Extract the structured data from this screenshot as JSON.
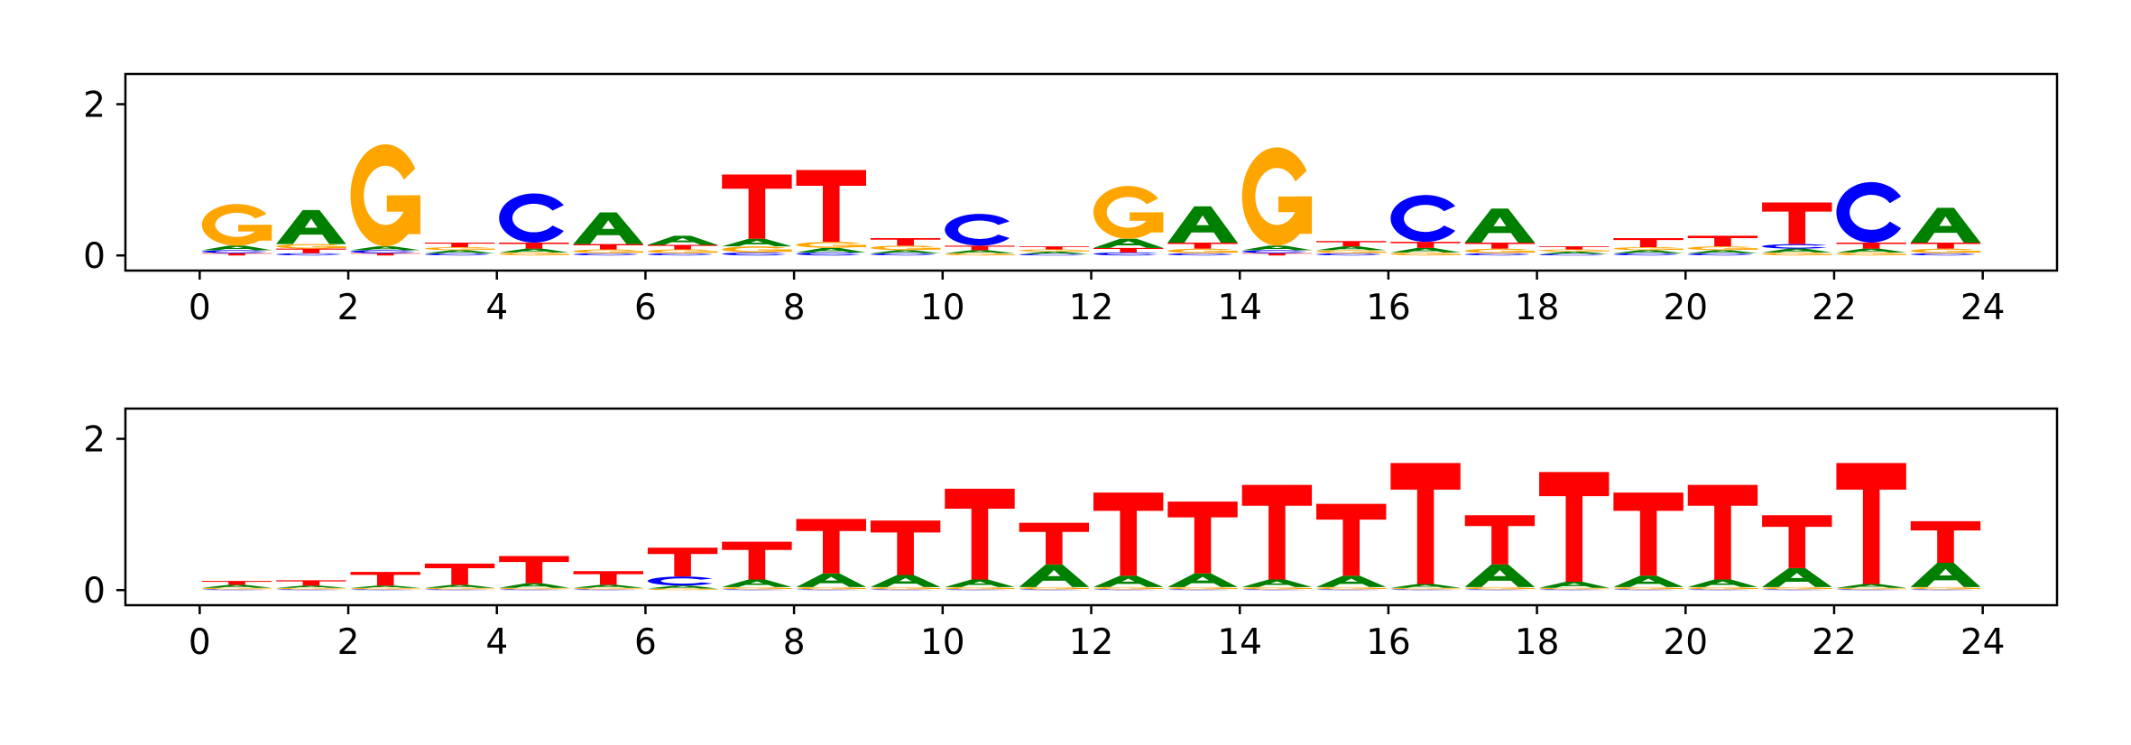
{
  "chart_data": [
    {
      "type": "sequence-logo",
      "title": "",
      "xlabel": "",
      "ylabel": "",
      "xlim": [
        -1,
        25
      ],
      "ylim": [
        -0.2,
        2.4
      ],
      "xticks": [
        "0",
        "2",
        "4",
        "6",
        "8",
        "10",
        "12",
        "14",
        "16",
        "18",
        "20",
        "22",
        "24"
      ],
      "yticks": [
        "0",
        "2"
      ],
      "colors": {
        "A": "#008000",
        "C": "#0000ff",
        "G": "#ffa500",
        "T": "#ff0000"
      },
      "positions": [
        {
          "x": 0.5,
          "letters": [
            {
              "b": "G",
              "h": 0.55
            },
            {
              "b": "A",
              "h": 0.06
            },
            {
              "b": "C",
              "h": 0.04
            },
            {
              "b": "T",
              "h": 0.03
            }
          ]
        },
        {
          "x": 1.5,
          "letters": [
            {
              "b": "A",
              "h": 0.45
            },
            {
              "b": "T",
              "h": 0.06
            },
            {
              "b": "G",
              "h": 0.06
            },
            {
              "b": "C",
              "h": 0.03
            }
          ]
        },
        {
          "x": 2.5,
          "letters": [
            {
              "b": "G",
              "h": 1.35
            },
            {
              "b": "A",
              "h": 0.05
            },
            {
              "b": "C",
              "h": 0.04
            },
            {
              "b": "T",
              "h": 0.03
            }
          ]
        },
        {
          "x": 3.5,
          "letters": [
            {
              "b": "T",
              "h": 0.06
            },
            {
              "b": "A",
              "h": 0.04
            },
            {
              "b": "G",
              "h": 0.04
            },
            {
              "b": "C",
              "h": 0.03
            }
          ]
        },
        {
          "x": 4.5,
          "letters": [
            {
              "b": "C",
              "h": 0.65
            },
            {
              "b": "T",
              "h": 0.08
            },
            {
              "b": "A",
              "h": 0.05
            },
            {
              "b": "G",
              "h": 0.04
            }
          ]
        },
        {
          "x": 5.5,
          "letters": [
            {
              "b": "A",
              "h": 0.42
            },
            {
              "b": "T",
              "h": 0.07
            },
            {
              "b": "G",
              "h": 0.05
            },
            {
              "b": "C",
              "h": 0.03
            }
          ]
        },
        {
          "x": 6.5,
          "letters": [
            {
              "b": "A",
              "h": 0.12
            },
            {
              "b": "T",
              "h": 0.06
            },
            {
              "b": "G",
              "h": 0.05
            },
            {
              "b": "C",
              "h": 0.03
            }
          ]
        },
        {
          "x": 7.5,
          "letters": [
            {
              "b": "T",
              "h": 0.85
            },
            {
              "b": "A",
              "h": 0.1
            },
            {
              "b": "G",
              "h": 0.08
            },
            {
              "b": "C",
              "h": 0.04
            }
          ]
        },
        {
          "x": 8.5,
          "letters": [
            {
              "b": "T",
              "h": 0.95
            },
            {
              "b": "G",
              "h": 0.08
            },
            {
              "b": "A",
              "h": 0.06
            },
            {
              "b": "C",
              "h": 0.04
            }
          ]
        },
        {
          "x": 9.5,
          "letters": [
            {
              "b": "T",
              "h": 0.1
            },
            {
              "b": "G",
              "h": 0.06
            },
            {
              "b": "A",
              "h": 0.04
            },
            {
              "b": "C",
              "h": 0.03
            }
          ]
        },
        {
          "x": 10.5,
          "letters": [
            {
              "b": "C",
              "h": 0.42
            },
            {
              "b": "T",
              "h": 0.06
            },
            {
              "b": "A",
              "h": 0.04
            },
            {
              "b": "G",
              "h": 0.03
            }
          ]
        },
        {
          "x": 11.5,
          "letters": [
            {
              "b": "T",
              "h": 0.04
            },
            {
              "b": "A",
              "h": 0.03
            },
            {
              "b": "G",
              "h": 0.03
            },
            {
              "b": "C",
              "h": 0.02
            }
          ]
        },
        {
          "x": 12.5,
          "letters": [
            {
              "b": "G",
              "h": 0.7
            },
            {
              "b": "A",
              "h": 0.12
            },
            {
              "b": "T",
              "h": 0.06
            },
            {
              "b": "C",
              "h": 0.04
            }
          ]
        },
        {
          "x": 13.5,
          "letters": [
            {
              "b": "A",
              "h": 0.48
            },
            {
              "b": "T",
              "h": 0.08
            },
            {
              "b": "G",
              "h": 0.06
            },
            {
              "b": "C",
              "h": 0.03
            }
          ]
        },
        {
          "x": 14.5,
          "letters": [
            {
              "b": "G",
              "h": 1.3
            },
            {
              "b": "A",
              "h": 0.06
            },
            {
              "b": "C",
              "h": 0.04
            },
            {
              "b": "T",
              "h": 0.03
            }
          ]
        },
        {
          "x": 15.5,
          "letters": [
            {
              "b": "T",
              "h": 0.07
            },
            {
              "b": "A",
              "h": 0.05
            },
            {
              "b": "G",
              "h": 0.04
            },
            {
              "b": "C",
              "h": 0.03
            }
          ]
        },
        {
          "x": 16.5,
          "letters": [
            {
              "b": "C",
              "h": 0.62
            },
            {
              "b": "T",
              "h": 0.08
            },
            {
              "b": "A",
              "h": 0.06
            },
            {
              "b": "G",
              "h": 0.04
            }
          ]
        },
        {
          "x": 17.5,
          "letters": [
            {
              "b": "A",
              "h": 0.45
            },
            {
              "b": "T",
              "h": 0.08
            },
            {
              "b": "G",
              "h": 0.06
            },
            {
              "b": "C",
              "h": 0.03
            }
          ]
        },
        {
          "x": 18.5,
          "letters": [
            {
              "b": "T",
              "h": 0.04
            },
            {
              "b": "A",
              "h": 0.03
            },
            {
              "b": "G",
              "h": 0.03
            },
            {
              "b": "C",
              "h": 0.02
            }
          ]
        },
        {
          "x": 19.5,
          "letters": [
            {
              "b": "T",
              "h": 0.12
            },
            {
              "b": "A",
              "h": 0.04
            },
            {
              "b": "G",
              "h": 0.04
            },
            {
              "b": "C",
              "h": 0.03
            }
          ]
        },
        {
          "x": 20.5,
          "letters": [
            {
              "b": "T",
              "h": 0.14
            },
            {
              "b": "G",
              "h": 0.05
            },
            {
              "b": "A",
              "h": 0.04
            },
            {
              "b": "C",
              "h": 0.03
            }
          ]
        },
        {
          "x": 21.5,
          "letters": [
            {
              "b": "T",
              "h": 0.55
            },
            {
              "b": "C",
              "h": 0.06
            },
            {
              "b": "A",
              "h": 0.05
            },
            {
              "b": "G",
              "h": 0.04
            }
          ]
        },
        {
          "x": 22.5,
          "letters": [
            {
              "b": "C",
              "h": 0.8
            },
            {
              "b": "T",
              "h": 0.08
            },
            {
              "b": "A",
              "h": 0.05
            },
            {
              "b": "G",
              "h": 0.04
            }
          ]
        },
        {
          "x": 23.5,
          "letters": [
            {
              "b": "A",
              "h": 0.46
            },
            {
              "b": "T",
              "h": 0.08
            },
            {
              "b": "G",
              "h": 0.06
            },
            {
              "b": "C",
              "h": 0.03
            }
          ]
        }
      ]
    },
    {
      "type": "sequence-logo",
      "title": "",
      "xlabel": "",
      "ylabel": "",
      "xlim": [
        -1,
        25
      ],
      "ylim": [
        -0.2,
        2.4
      ],
      "xticks": [
        "0",
        "2",
        "4",
        "6",
        "8",
        "10",
        "12",
        "14",
        "16",
        "18",
        "20",
        "22",
        "24"
      ],
      "yticks": [
        "0",
        "2"
      ],
      "colors": {
        "A": "#008000",
        "C": "#0000ff",
        "G": "#ffa500",
        "T": "#ff0000"
      },
      "positions": [
        {
          "x": 0.5,
          "letters": [
            {
              "b": "T",
              "h": 0.05
            },
            {
              "b": "A",
              "h": 0.04
            },
            {
              "b": "G",
              "h": 0.02
            },
            {
              "b": "C",
              "h": 0.01
            }
          ]
        },
        {
          "x": 1.5,
          "letters": [
            {
              "b": "T",
              "h": 0.07
            },
            {
              "b": "A",
              "h": 0.03
            },
            {
              "b": "G",
              "h": 0.02
            },
            {
              "b": "C",
              "h": 0.01
            }
          ]
        },
        {
          "x": 2.5,
          "letters": [
            {
              "b": "T",
              "h": 0.18
            },
            {
              "b": "A",
              "h": 0.03
            },
            {
              "b": "G",
              "h": 0.02
            },
            {
              "b": "C",
              "h": 0.01
            }
          ]
        },
        {
          "x": 3.5,
          "letters": [
            {
              "b": "T",
              "h": 0.28
            },
            {
              "b": "A",
              "h": 0.04
            },
            {
              "b": "G",
              "h": 0.02
            },
            {
              "b": "C",
              "h": 0.01
            }
          ]
        },
        {
          "x": 4.5,
          "letters": [
            {
              "b": "T",
              "h": 0.36
            },
            {
              "b": "A",
              "h": 0.06
            },
            {
              "b": "G",
              "h": 0.02
            },
            {
              "b": "C",
              "h": 0.01
            }
          ]
        },
        {
          "x": 5.5,
          "letters": [
            {
              "b": "T",
              "h": 0.18
            },
            {
              "b": "A",
              "h": 0.04
            },
            {
              "b": "G",
              "h": 0.02
            },
            {
              "b": "C",
              "h": 0.01
            }
          ]
        },
        {
          "x": 6.5,
          "letters": [
            {
              "b": "T",
              "h": 0.38
            },
            {
              "b": "C",
              "h": 0.12
            },
            {
              "b": "A",
              "h": 0.04
            },
            {
              "b": "G",
              "h": 0.02
            }
          ]
        },
        {
          "x": 7.5,
          "letters": [
            {
              "b": "T",
              "h": 0.5
            },
            {
              "b": "A",
              "h": 0.1
            },
            {
              "b": "G",
              "h": 0.03
            },
            {
              "b": "C",
              "h": 0.01
            }
          ]
        },
        {
          "x": 8.5,
          "letters": [
            {
              "b": "T",
              "h": 0.72
            },
            {
              "b": "A",
              "h": 0.18
            },
            {
              "b": "G",
              "h": 0.03
            },
            {
              "b": "C",
              "h": 0.01
            }
          ]
        },
        {
          "x": 9.5,
          "letters": [
            {
              "b": "T",
              "h": 0.72
            },
            {
              "b": "A",
              "h": 0.16
            },
            {
              "b": "G",
              "h": 0.03
            },
            {
              "b": "C",
              "h": 0.01
            }
          ]
        },
        {
          "x": 10.5,
          "letters": [
            {
              "b": "T",
              "h": 1.2
            },
            {
              "b": "A",
              "h": 0.1
            },
            {
              "b": "G",
              "h": 0.03
            },
            {
              "b": "C",
              "h": 0.01
            }
          ]
        },
        {
          "x": 11.5,
          "letters": [
            {
              "b": "T",
              "h": 0.55
            },
            {
              "b": "A",
              "h": 0.3
            },
            {
              "b": "G",
              "h": 0.03
            },
            {
              "b": "C",
              "h": 0.01
            }
          ]
        },
        {
          "x": 12.5,
          "letters": [
            {
              "b": "T",
              "h": 1.1
            },
            {
              "b": "A",
              "h": 0.15
            },
            {
              "b": "G",
              "h": 0.03
            },
            {
              "b": "C",
              "h": 0.01
            }
          ]
        },
        {
          "x": 13.5,
          "letters": [
            {
              "b": "T",
              "h": 0.95
            },
            {
              "b": "A",
              "h": 0.18
            },
            {
              "b": "G",
              "h": 0.03
            },
            {
              "b": "C",
              "h": 0.01
            }
          ]
        },
        {
          "x": 14.5,
          "letters": [
            {
              "b": "T",
              "h": 1.25
            },
            {
              "b": "A",
              "h": 0.1
            },
            {
              "b": "G",
              "h": 0.03
            },
            {
              "b": "C",
              "h": 0.01
            }
          ]
        },
        {
          "x": 15.5,
          "letters": [
            {
              "b": "T",
              "h": 0.95
            },
            {
              "b": "A",
              "h": 0.15
            },
            {
              "b": "G",
              "h": 0.03
            },
            {
              "b": "C",
              "h": 0.01
            }
          ]
        },
        {
          "x": 16.5,
          "letters": [
            {
              "b": "T",
              "h": 1.6
            },
            {
              "b": "A",
              "h": 0.05
            },
            {
              "b": "G",
              "h": 0.02
            },
            {
              "b": "C",
              "h": 0.01
            }
          ]
        },
        {
          "x": 17.5,
          "letters": [
            {
              "b": "T",
              "h": 0.65
            },
            {
              "b": "A",
              "h": 0.3
            },
            {
              "b": "G",
              "h": 0.03
            },
            {
              "b": "C",
              "h": 0.01
            }
          ]
        },
        {
          "x": 18.5,
          "letters": [
            {
              "b": "T",
              "h": 1.45
            },
            {
              "b": "A",
              "h": 0.08
            },
            {
              "b": "G",
              "h": 0.02
            },
            {
              "b": "C",
              "h": 0.01
            }
          ]
        },
        {
          "x": 19.5,
          "letters": [
            {
              "b": "T",
              "h": 1.1
            },
            {
              "b": "A",
              "h": 0.15
            },
            {
              "b": "G",
              "h": 0.03
            },
            {
              "b": "C",
              "h": 0.01
            }
          ]
        },
        {
          "x": 20.5,
          "letters": [
            {
              "b": "T",
              "h": 1.25
            },
            {
              "b": "A",
              "h": 0.1
            },
            {
              "b": "G",
              "h": 0.03
            },
            {
              "b": "C",
              "h": 0.01
            }
          ]
        },
        {
          "x": 21.5,
          "letters": [
            {
              "b": "T",
              "h": 0.7
            },
            {
              "b": "A",
              "h": 0.25
            },
            {
              "b": "G",
              "h": 0.03
            },
            {
              "b": "C",
              "h": 0.01
            }
          ]
        },
        {
          "x": 22.5,
          "letters": [
            {
              "b": "T",
              "h": 1.6
            },
            {
              "b": "A",
              "h": 0.05
            },
            {
              "b": "G",
              "h": 0.02
            },
            {
              "b": "C",
              "h": 0.01
            }
          ]
        },
        {
          "x": 23.5,
          "letters": [
            {
              "b": "T",
              "h": 0.55
            },
            {
              "b": "A",
              "h": 0.32
            },
            {
              "b": "G",
              "h": 0.03
            },
            {
              "b": "C",
              "h": 0.01
            }
          ]
        }
      ]
    }
  ]
}
